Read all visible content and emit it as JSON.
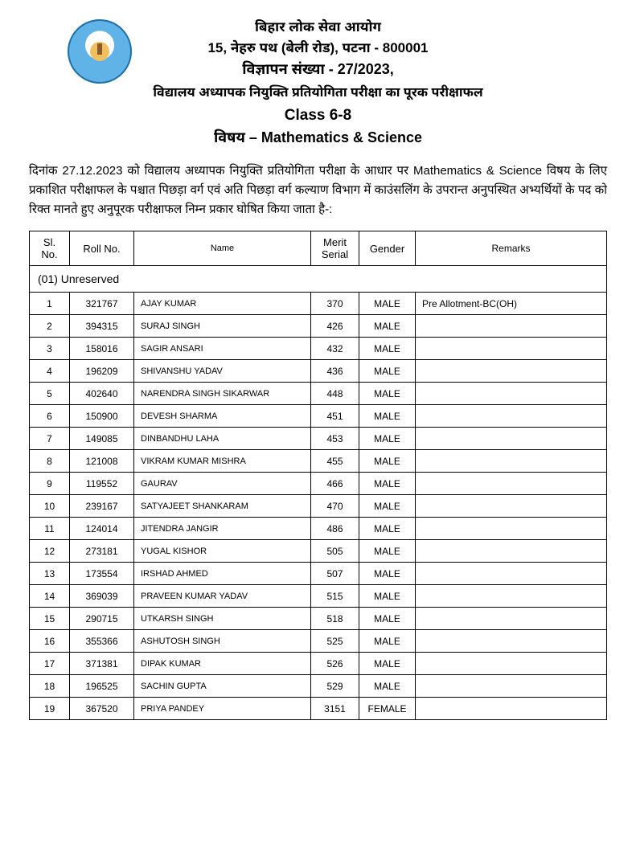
{
  "header": {
    "org": "बिहार लोक सेवा आयोग",
    "address": "15, नेहरु पथ (बेली रोड), पटना - 800001",
    "ad_no": "विज्ञापन संख्या - 27/2023,",
    "title": "विद्यालय अध्यापक नियुक्ति प्रतियोगिता परीक्षा का पूरक परीक्षाफल",
    "class": "Class 6-8",
    "subject": "विषय – Mathematics & Science"
  },
  "paragraph": "दिनांक 27.12.2023 को विद्यालय अध्यापक नियुक्ति प्रतियोगिता परीक्षा के आधार पर Mathematics & Science विषय के लिए प्रकाशित परीक्षाफल के पश्चात पिछड़ा वर्ग एवं अति पिछड़ा वर्ग कल्याण विभाग में काउंसलिंग के उपरान्त अनुपस्थित अभ्यर्थियों के पद को रिक्त मानते हुए अनुपूरक परीक्षाफल निम्न प्रकार घोषित किया जाता है-:",
  "columns": [
    "Sl. No.",
    "Roll No.",
    "Name",
    "Merit Serial",
    "Gender",
    "Remarks"
  ],
  "category": "(01) Unreserved",
  "rows": [
    {
      "sl": "1",
      "roll": "321767",
      "name": "AJAY KUMAR",
      "merit": "370",
      "gender": "MALE",
      "remarks": "Pre Allotment-BC(OH)"
    },
    {
      "sl": "2",
      "roll": "394315",
      "name": "SURAJ SINGH",
      "merit": "426",
      "gender": "MALE",
      "remarks": ""
    },
    {
      "sl": "3",
      "roll": "158016",
      "name": "SAGIR ANSARI",
      "merit": "432",
      "gender": "MALE",
      "remarks": ""
    },
    {
      "sl": "4",
      "roll": "196209",
      "name": "SHIVANSHU YADAV",
      "merit": "436",
      "gender": "MALE",
      "remarks": ""
    },
    {
      "sl": "5",
      "roll": "402640",
      "name": "NARENDRA SINGH SIKARWAR",
      "merit": "448",
      "gender": "MALE",
      "remarks": ""
    },
    {
      "sl": "6",
      "roll": "150900",
      "name": "DEVESH SHARMA",
      "merit": "451",
      "gender": "MALE",
      "remarks": ""
    },
    {
      "sl": "7",
      "roll": "149085",
      "name": "DINBANDHU LAHA",
      "merit": "453",
      "gender": "MALE",
      "remarks": ""
    },
    {
      "sl": "8",
      "roll": "121008",
      "name": "VIKRAM KUMAR MISHRA",
      "merit": "455",
      "gender": "MALE",
      "remarks": ""
    },
    {
      "sl": "9",
      "roll": "119552",
      "name": "GAURAV",
      "merit": "466",
      "gender": "MALE",
      "remarks": ""
    },
    {
      "sl": "10",
      "roll": "239167",
      "name": "SATYAJEET SHANKARAM",
      "merit": "470",
      "gender": "MALE",
      "remarks": ""
    },
    {
      "sl": "11",
      "roll": "124014",
      "name": "JITENDRA JANGIR",
      "merit": "486",
      "gender": "MALE",
      "remarks": ""
    },
    {
      "sl": "12",
      "roll": "273181",
      "name": "YUGAL KISHOR",
      "merit": "505",
      "gender": "MALE",
      "remarks": ""
    },
    {
      "sl": "13",
      "roll": "173554",
      "name": "IRSHAD AHMED",
      "merit": "507",
      "gender": "MALE",
      "remarks": ""
    },
    {
      "sl": "14",
      "roll": "369039",
      "name": "PRAVEEN KUMAR YADAV",
      "merit": "515",
      "gender": "MALE",
      "remarks": ""
    },
    {
      "sl": "15",
      "roll": "290715",
      "name": "UTKARSH SINGH",
      "merit": "518",
      "gender": "MALE",
      "remarks": ""
    },
    {
      "sl": "16",
      "roll": "355366",
      "name": "ASHUTOSH SINGH",
      "merit": "525",
      "gender": "MALE",
      "remarks": ""
    },
    {
      "sl": "17",
      "roll": "371381",
      "name": "DIPAK KUMAR",
      "merit": "526",
      "gender": "MALE",
      "remarks": ""
    },
    {
      "sl": "18",
      "roll": "196525",
      "name": "SACHIN GUPTA",
      "merit": "529",
      "gender": "MALE",
      "remarks": ""
    },
    {
      "sl": "19",
      "roll": "367520",
      "name": "PRIYA PANDEY",
      "merit": "3151",
      "gender": "FEMALE",
      "remarks": ""
    }
  ]
}
